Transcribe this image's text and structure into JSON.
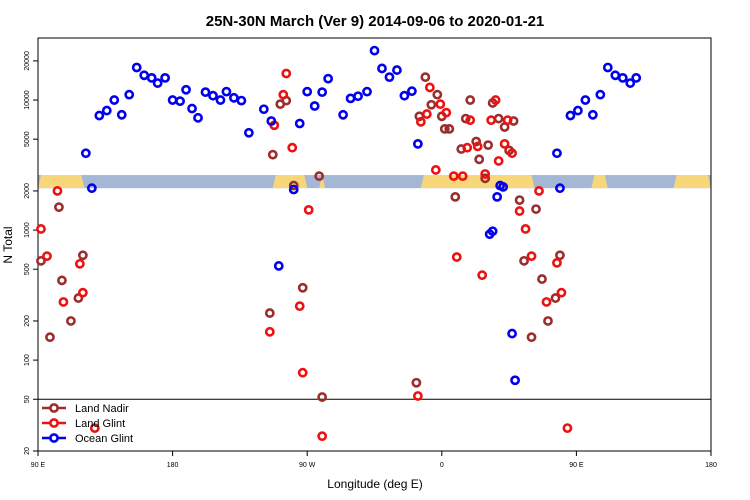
{
  "chart_data": {
    "type": "scatter",
    "title": "25N-30N March (Ver 9)   2014-09-06 to 2020-01-21",
    "xlabel": "Longitude (deg E)",
    "ylabel": "N Total",
    "y_scale": "log",
    "xlim": [
      90,
      540
    ],
    "ylim": [
      20,
      30000
    ],
    "x_ticks": [
      {
        "value": 90,
        "label": "90 E"
      },
      {
        "value": 180,
        "label": "180"
      },
      {
        "value": 270,
        "label": "90 W"
      },
      {
        "value": 360,
        "label": "0"
      },
      {
        "value": 450,
        "label": "90 E"
      },
      {
        "value": 540,
        "label": "180"
      }
    ],
    "y_ticks": [
      {
        "value": 20,
        "label": "20"
      },
      {
        "value": 50,
        "label": "50"
      },
      {
        "value": 100,
        "label": "100"
      },
      {
        "value": 200,
        "label": "200"
      },
      {
        "value": 500,
        "label": "500"
      },
      {
        "value": 1000,
        "label": "1000"
      },
      {
        "value": 2000,
        "label": "2000"
      },
      {
        "value": 5000,
        "label": "5000"
      },
      {
        "value": 10000,
        "label": "10000"
      },
      {
        "value": 20000,
        "label": "20000"
      }
    ],
    "reference_line": 50,
    "band": {
      "y_range": [
        2100,
        2650
      ],
      "land_color": "#f7d77a",
      "ocean_color": "#a4b8d6",
      "land_segments": [
        [
          90,
          121
        ],
        [
          112,
          112
        ],
        [
          247,
          270
        ],
        [
          278,
          282
        ],
        [
          346,
          422
        ],
        [
          460,
          471
        ],
        [
          515,
          540
        ]
      ]
    },
    "legend": {
      "position": "bottom-left",
      "entries": [
        "Land Nadir",
        "Land Glint",
        "Ocean Glint"
      ]
    },
    "series": [
      {
        "name": "Land Nadir",
        "color": "#9b2d2d",
        "points": [
          [
            92,
            580
          ],
          [
            98,
            150
          ],
          [
            104,
            1500
          ],
          [
            106,
            410
          ],
          [
            112,
            200
          ],
          [
            117,
            300
          ],
          [
            120,
            640
          ],
          [
            245,
            230
          ],
          [
            247,
            3800
          ],
          [
            252,
            9300
          ],
          [
            256,
            9900
          ],
          [
            261,
            2200
          ],
          [
            267,
            360
          ],
          [
            278,
            2600
          ],
          [
            280,
            52
          ],
          [
            343,
            67
          ],
          [
            345,
            7500
          ],
          [
            349,
            15000
          ],
          [
            353,
            9200
          ],
          [
            357,
            11000
          ],
          [
            360,
            7500
          ],
          [
            362,
            6000
          ],
          [
            365,
            6000
          ],
          [
            369,
            1800
          ],
          [
            373,
            4200
          ],
          [
            376,
            7200
          ],
          [
            379,
            10000
          ],
          [
            383,
            4800
          ],
          [
            385,
            3500
          ],
          [
            389,
            2500
          ],
          [
            391,
            4500
          ],
          [
            394,
            9500
          ],
          [
            398,
            7200
          ],
          [
            402,
            6200
          ],
          [
            405,
            4100
          ],
          [
            408,
            6900
          ],
          [
            412,
            1700
          ],
          [
            415,
            580
          ],
          [
            420,
            150
          ],
          [
            423,
            1450
          ],
          [
            427,
            420
          ],
          [
            431,
            200
          ],
          [
            436,
            300
          ],
          [
            439,
            640
          ]
        ]
      },
      {
        "name": "Land Glint",
        "color": "#ee1111",
        "points": [
          [
            92,
            1020
          ],
          [
            96,
            630
          ],
          [
            103,
            2000
          ],
          [
            107,
            280
          ],
          [
            118,
            550
          ],
          [
            120,
            330
          ],
          [
            128,
            30
          ],
          [
            245,
            165
          ],
          [
            248,
            6400
          ],
          [
            254,
            11000
          ],
          [
            256,
            16000
          ],
          [
            260,
            4300
          ],
          [
            265,
            260
          ],
          [
            267,
            80
          ],
          [
            271,
            1430
          ],
          [
            280,
            26
          ],
          [
            344,
            53
          ],
          [
            346,
            6800
          ],
          [
            350,
            7800
          ],
          [
            352,
            12500
          ],
          [
            356,
            2900
          ],
          [
            359,
            9300
          ],
          [
            363,
            8000
          ],
          [
            368,
            2600
          ],
          [
            370,
            620
          ],
          [
            374,
            2600
          ],
          [
            377,
            4300
          ],
          [
            379,
            7000
          ],
          [
            384,
            4400
          ],
          [
            387,
            450
          ],
          [
            389,
            2700
          ],
          [
            393,
            7000
          ],
          [
            396,
            10000
          ],
          [
            398,
            3400
          ],
          [
            402,
            4600
          ],
          [
            404,
            7000
          ],
          [
            407,
            3900
          ],
          [
            412,
            1400
          ],
          [
            416,
            1020
          ],
          [
            420,
            630
          ],
          [
            425,
            2000
          ],
          [
            430,
            280
          ],
          [
            437,
            560
          ],
          [
            440,
            330
          ],
          [
            444,
            30
          ]
        ]
      },
      {
        "name": "Ocean Glint",
        "color": "#0000ee",
        "points": [
          [
            122,
            3900
          ],
          [
            126,
            2100
          ],
          [
            131,
            7600
          ],
          [
            136,
            8300
          ],
          [
            141,
            10000
          ],
          [
            146,
            7700
          ],
          [
            151,
            11000
          ],
          [
            156,
            17800
          ],
          [
            161,
            15500
          ],
          [
            166,
            14800
          ],
          [
            170,
            13500
          ],
          [
            175,
            14800
          ],
          [
            180,
            10000
          ],
          [
            185,
            9800
          ],
          [
            189,
            12000
          ],
          [
            193,
            8600
          ],
          [
            197,
            7300
          ],
          [
            202,
            11500
          ],
          [
            207,
            10800
          ],
          [
            212,
            10000
          ],
          [
            216,
            11600
          ],
          [
            221,
            10400
          ],
          [
            226,
            9900
          ],
          [
            231,
            5600
          ],
          [
            241,
            8500
          ],
          [
            246,
            6900
          ],
          [
            251,
            530
          ],
          [
            261,
            2050
          ],
          [
            265,
            6600
          ],
          [
            270,
            11600
          ],
          [
            275,
            9000
          ],
          [
            280,
            11500
          ],
          [
            284,
            14600
          ],
          [
            294,
            7700
          ],
          [
            299,
            10300
          ],
          [
            304,
            10700
          ],
          [
            310,
            11600
          ],
          [
            315,
            24000
          ],
          [
            320,
            17500
          ],
          [
            325,
            15000
          ],
          [
            330,
            17000
          ],
          [
            335,
            10800
          ],
          [
            340,
            11700
          ],
          [
            344,
            4600
          ],
          [
            392,
            930
          ],
          [
            394,
            980
          ],
          [
            397,
            1800
          ],
          [
            399,
            2200
          ],
          [
            401,
            2150
          ],
          [
            407,
            160
          ],
          [
            409,
            70
          ],
          [
            437,
            3900
          ],
          [
            439,
            2100
          ],
          [
            446,
            7600
          ],
          [
            451,
            8300
          ],
          [
            456,
            10000
          ],
          [
            461,
            7700
          ],
          [
            466,
            11000
          ],
          [
            471,
            17800
          ],
          [
            476,
            15500
          ],
          [
            481,
            14800
          ],
          [
            486,
            13500
          ],
          [
            490,
            14800
          ]
        ]
      }
    ]
  }
}
